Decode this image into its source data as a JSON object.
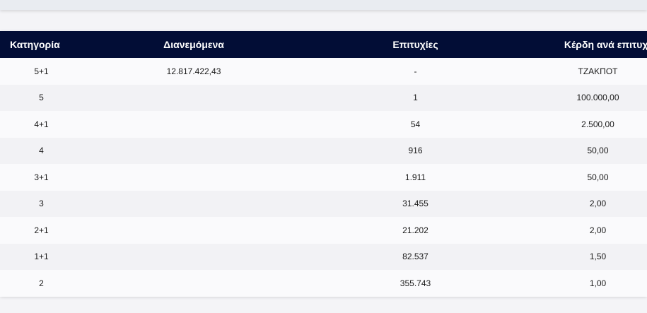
{
  "table": {
    "headers": [
      "Κατηγορία",
      "Διανεμόμενα",
      "Επιτυχίες",
      "Κέρδη ανά επιτυχία"
    ],
    "rows": [
      [
        "5+1",
        "12.817.422,43",
        "-",
        "ΤΖΑΚΠΟΤ"
      ],
      [
        "5",
        "",
        "1",
        "100.000,00"
      ],
      [
        "4+1",
        "",
        "54",
        "2.500,00"
      ],
      [
        "4",
        "",
        "916",
        "50,00"
      ],
      [
        "3+1",
        "",
        "1.911",
        "50,00"
      ],
      [
        "3",
        "",
        "31.455",
        "2,00"
      ],
      [
        "2+1",
        "",
        "21.202",
        "2,00"
      ],
      [
        "1+1",
        "",
        "82.537",
        "1,50"
      ],
      [
        "2",
        "",
        "355.743",
        "1,00"
      ]
    ]
  },
  "colors": {
    "header_bg": "#020d36",
    "header_text": "#ffffff",
    "row_odd": "#fafafc",
    "row_even": "#f2f2f5",
    "page_bg": "#f4f4f7"
  }
}
